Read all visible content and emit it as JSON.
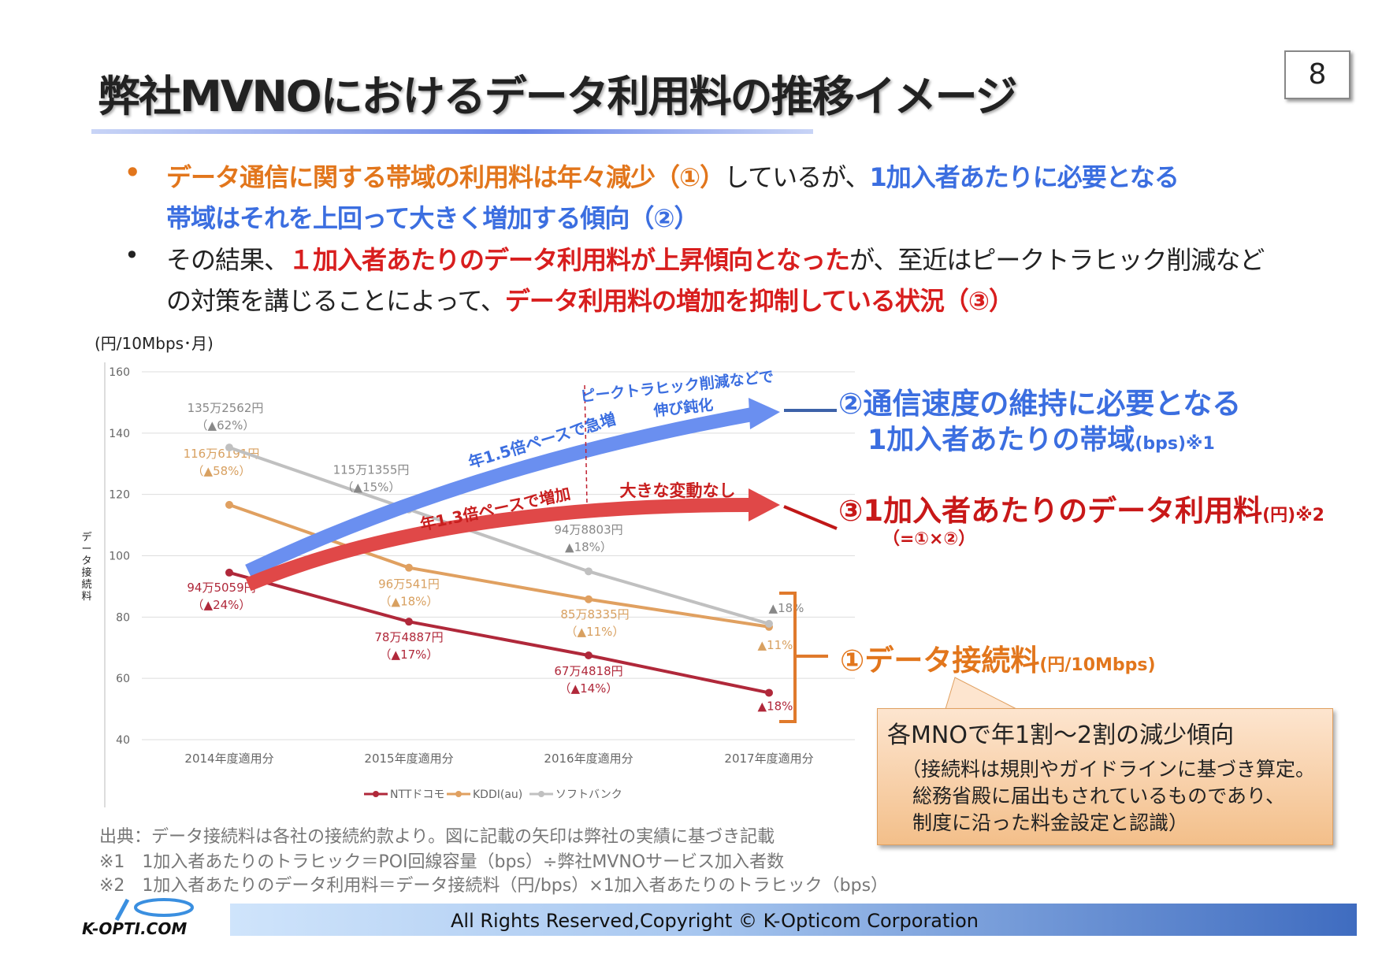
{
  "title": "弊社MVNOにおけるデータ利用料の推移イメージ",
  "page_number": "8",
  "bullets": [
    {
      "l1a": "データ通信に関する帯域の利用料は年々減少（①）",
      "l1b": "しているが、",
      "l1c": "1加入者あたりに必要となる",
      "l2": "帯域はそれを上回って大きく増加する傾向（②）"
    },
    {
      "l1a": "その結果、",
      "l1b": "１加入者あたりのデータ利用料が上昇傾向となった",
      "l1c": "が、至近はピークトラヒック削減など",
      "l2a": "の対策を講じることによって、",
      "l2b": "データ利用料の増加を抑制している状況（③）"
    }
  ],
  "bullet_symbol": "•",
  "chart_data": {
    "type": "line",
    "unit_label": "(円/10Mbps･月)",
    "ylabel": "データ接続料",
    "ylim": [
      40,
      160
    ],
    "yticks": [
      "160",
      "140",
      "120",
      "100",
      "80",
      "60",
      "40"
    ],
    "categories": [
      "2014年度適用分",
      "2015年度適用分",
      "2016年度適用分",
      "2017年度適用分"
    ],
    "series": [
      {
        "name": "NTTドコモ",
        "color": "#b0283a",
        "values": [
          94.5,
          78.5,
          67.5,
          55.3
        ],
        "labels": [
          [
            "94万5059円",
            "（▲24%）"
          ],
          [
            "78万4887円",
            "（▲17%）"
          ],
          [
            "67万4818円",
            "（▲14%）"
          ],
          [
            "",
            "▲18%"
          ]
        ]
      },
      {
        "name": "KDDI(au)",
        "color": "#e0a060",
        "values": [
          116.6,
          96.1,
          85.8,
          76.8
        ],
        "labels": [
          [
            "116万6191円",
            "（▲58%）"
          ],
          [
            "96万541円",
            "（▲18%）"
          ],
          [
            "85万8335円",
            "（▲11%）"
          ],
          [
            "",
            "▲11%"
          ]
        ]
      },
      {
        "name": "ソフトバンク",
        "color": "#c0c0c0",
        "values": [
          135.3,
          115.1,
          94.9,
          77.8
        ],
        "labels": [
          [
            "135万2562円",
            "（▲62%）"
          ],
          [
            "115万1355円",
            "（▲15%）"
          ],
          [
            "94万8803円",
            "▲18%）"
          ],
          [
            "",
            "▲18%"
          ]
        ]
      }
    ],
    "annotations": {
      "blue_rise": "年1.5倍ペースで急増",
      "red_rise": "年1.3倍ペースで増加",
      "blue_slow_1": "ピークトラヒック削減などで",
      "blue_slow_2": "伸び鈍化",
      "red_flat": "大きな変動なし"
    }
  },
  "right_labels": {
    "l2_a": "②通信速度の維持に必要となる",
    "l2_b": "1加入者あたりの帯域",
    "l2_c": "(bps)※1",
    "l3_a": "③1加入者あたりのデータ利用料",
    "l3_b": "(円)※2",
    "l3_c": "（=①×②）",
    "l1_a": "①データ接続料",
    "l1_b": "(円/10Mbps)"
  },
  "callout": {
    "heading": "各MNOで年1割～2割の減少傾向",
    "body": [
      "（接続料は規則やガイドラインに基づき算定。",
      "総務省殿に届出もされているものであり、",
      "制度に沿った料金設定と認識）"
    ]
  },
  "notes": [
    "出典：データ接続料は各社の接続約款より。図に記載の矢印は弊社の実績に基づき記載",
    "※1　1加入者あたりのトラヒック＝POI回線容量（bps）÷弊社MVNOサービス加入者数",
    "※2　1加入者あたりのデータ利用料＝データ接続料（円/bps）×1加入者あたりのトラヒック（bps）"
  ],
  "footer": {
    "copyright": "All Rights Reserved,Copyright © K-Opticom Corporation",
    "logo_text": "K-OPTI.COM"
  },
  "colors": {
    "blue": "#3b6ee0",
    "red": "#d81e1e",
    "orange": "#e2761c"
  }
}
